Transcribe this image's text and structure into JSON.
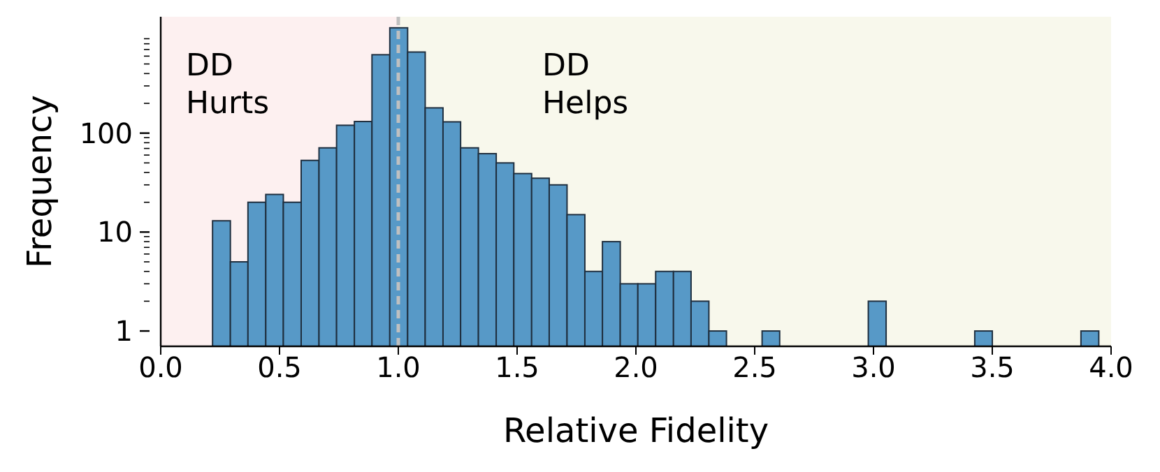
{
  "chart_data": {
    "type": "histogram",
    "xlabel": "Relative Fidelity",
    "ylabel": "Frequency",
    "color": "#5799c7",
    "bins": [
      0.216,
      0.291,
      0.365,
      0.44,
      0.514,
      0.589,
      0.664,
      0.738,
      0.813,
      0.887,
      0.962,
      1.037,
      1.111,
      1.186,
      1.26,
      1.335,
      1.41,
      1.484,
      1.559,
      1.633,
      1.708,
      1.783,
      1.857,
      1.932,
      2.006,
      2.081,
      2.156,
      2.23,
      2.305,
      2.379,
      2.454,
      2.529,
      2.603,
      2.678,
      2.752,
      2.827,
      2.902,
      2.976,
      3.051,
      3.125,
      3.2,
      3.275,
      3.349,
      3.424,
      3.498,
      3.573,
      3.648,
      3.722,
      3.797,
      3.871,
      3.946
    ],
    "values": [
      13,
      5,
      20,
      24,
      20,
      53,
      71,
      120,
      131,
      620,
      1160,
      660,
      180,
      130,
      71,
      62,
      50,
      39,
      35,
      30,
      15,
      4,
      8,
      3,
      3,
      4,
      4,
      2,
      1,
      null,
      null,
      1,
      null,
      null,
      null,
      null,
      null,
      2,
      null,
      null,
      null,
      null,
      null,
      1,
      null,
      null,
      null,
      null,
      null,
      1
    ],
    "log": "y",
    "xlim": [
      0,
      4
    ],
    "ylim": [
      0.7,
      1500
    ],
    "xticks": [
      {
        "value": 0,
        "label": "0.0"
      },
      0.5,
      {
        "value": 1,
        "label": "1.0"
      },
      1.5,
      {
        "value": 2,
        "label": "2.0"
      },
      2.5,
      {
        "value": 3,
        "label": "3.0"
      },
      3.5,
      {
        "value": 4,
        "label": "4.0"
      }
    ],
    "yticks": [
      1,
      {
        "value": 2,
        "label": null
      },
      {
        "value": 3,
        "label": null
      },
      {
        "value": 4,
        "label": null
      },
      {
        "value": 5,
        "label": null
      },
      {
        "value": 6,
        "label": null
      },
      {
        "value": 7,
        "label": null
      },
      {
        "value": 8,
        "label": null
      },
      {
        "value": 9,
        "label": null
      },
      10,
      {
        "value": 20,
        "label": null
      },
      {
        "value": 30,
        "label": null
      },
      {
        "value": 40,
        "label": null
      },
      {
        "value": 50,
        "label": null
      },
      {
        "value": 60,
        "label": null
      },
      {
        "value": 70,
        "label": null
      },
      {
        "value": 80,
        "label": null
      },
      {
        "value": 90,
        "label": null
      },
      100,
      {
        "value": 200,
        "label": null
      },
      {
        "value": 300,
        "label": null
      },
      {
        "value": 400,
        "label": null
      },
      {
        "value": 500,
        "label": null
      },
      {
        "value": 600,
        "label": null
      },
      {
        "value": 700,
        "label": null
      },
      {
        "value": 800,
        "label": null
      },
      {
        "value": 900,
        "label": null
      }
    ],
    "bands": [
      {
        "axis": "x",
        "from": 0,
        "to": 1,
        "label": "DD Hurts",
        "color": "#fdf0f0"
      },
      {
        "axis": "x",
        "from": 1,
        "to": 4,
        "label": "DD Helps",
        "color": "#f8f8ec"
      }
    ],
    "ref_lines": [
      {
        "axis": "x",
        "value": 1,
        "color": "#c0c0c0",
        "line_style": "dashed"
      }
    ],
    "grid": false,
    "legend": false
  }
}
